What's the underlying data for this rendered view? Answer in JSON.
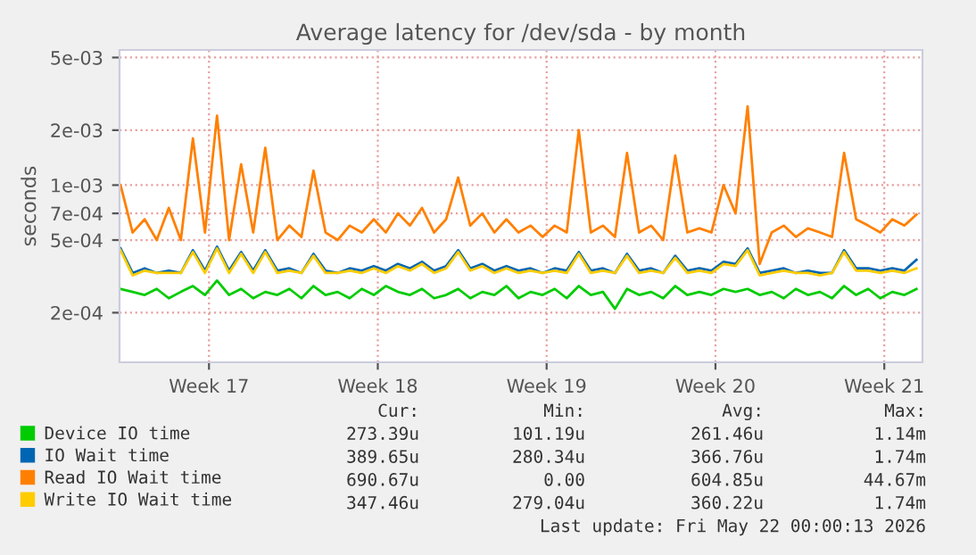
{
  "chart_data": {
    "type": "line",
    "title": "Average latency for /dev/sda - by month",
    "ylabel": "seconds",
    "x": [
      "2026-04-19T00:00",
      "2026-04-19T12:00",
      "2026-04-20T00:00",
      "2026-04-20T12:00",
      "2026-04-21T00:00",
      "2026-04-21T12:00",
      "2026-04-22T00:00",
      "2026-04-22T12:00",
      "2026-04-23T00:00",
      "2026-04-23T12:00",
      "2026-04-24T00:00",
      "2026-04-24T12:00",
      "2026-04-25T00:00",
      "2026-04-25T12:00",
      "2026-04-26T00:00",
      "2026-04-26T12:00",
      "2026-04-27T00:00",
      "2026-04-27T12:00",
      "2026-04-28T00:00",
      "2026-04-28T12:00",
      "2026-04-29T00:00",
      "2026-04-29T12:00",
      "2026-04-30T00:00",
      "2026-04-30T12:00",
      "2026-05-01T00:00",
      "2026-05-01T12:00",
      "2026-05-02T00:00",
      "2026-05-02T12:00",
      "2026-05-03T00:00",
      "2026-05-03T12:00",
      "2026-05-04T00:00",
      "2026-05-04T12:00",
      "2026-05-05T00:00",
      "2026-05-05T12:00",
      "2026-05-06T00:00",
      "2026-05-06T12:00",
      "2026-05-07T00:00",
      "2026-05-07T12:00",
      "2026-05-08T00:00",
      "2026-05-08T12:00",
      "2026-05-09T00:00",
      "2026-05-09T12:00",
      "2026-05-10T00:00",
      "2026-05-10T12:00",
      "2026-05-11T00:00",
      "2026-05-11T12:00",
      "2026-05-12T00:00",
      "2026-05-12T12:00",
      "2026-05-13T00:00",
      "2026-05-13T12:00",
      "2026-05-14T00:00",
      "2026-05-14T12:00",
      "2026-05-15T00:00",
      "2026-05-15T12:00",
      "2026-05-16T00:00",
      "2026-05-16T12:00",
      "2026-05-17T00:00",
      "2026-05-17T12:00",
      "2026-05-18T00:00",
      "2026-05-18T12:00",
      "2026-05-19T00:00",
      "2026-05-19T12:00",
      "2026-05-20T00:00",
      "2026-05-20T12:00",
      "2026-05-21T00:00",
      "2026-05-21T12:00",
      "2026-05-22T00:00"
    ],
    "series": [
      {
        "name": "Device IO time",
        "color": "#00cc00",
        "values": [
          0.00027,
          0.00026,
          0.00025,
          0.00027,
          0.00024,
          0.00026,
          0.00028,
          0.00025,
          0.0003,
          0.00025,
          0.00027,
          0.00024,
          0.00026,
          0.00025,
          0.00027,
          0.00024,
          0.00028,
          0.00025,
          0.00026,
          0.00024,
          0.00027,
          0.00025,
          0.00028,
          0.00026,
          0.00025,
          0.00027,
          0.00024,
          0.00025,
          0.00027,
          0.00024,
          0.00026,
          0.00025,
          0.00028,
          0.00024,
          0.00026,
          0.00025,
          0.00027,
          0.00024,
          0.00028,
          0.00025,
          0.00026,
          0.00021,
          0.00027,
          0.00025,
          0.00026,
          0.00024,
          0.00028,
          0.00025,
          0.00026,
          0.00025,
          0.00027,
          0.00026,
          0.00027,
          0.00025,
          0.00026,
          0.00024,
          0.00027,
          0.00025,
          0.00026,
          0.00024,
          0.00028,
          0.00025,
          0.00027,
          0.00024,
          0.00026,
          0.00025,
          0.00027
        ]
      },
      {
        "name": "IO Wait time",
        "color": "#0066b3",
        "values": [
          0.00045,
          0.00033,
          0.00035,
          0.00033,
          0.00034,
          0.00033,
          0.00044,
          0.00034,
          0.00046,
          0.00034,
          0.00043,
          0.00034,
          0.00044,
          0.00034,
          0.00035,
          0.00033,
          0.00042,
          0.00034,
          0.00033,
          0.00035,
          0.00034,
          0.00036,
          0.00034,
          0.00037,
          0.00035,
          0.00038,
          0.00034,
          0.00036,
          0.00044,
          0.00035,
          0.00037,
          0.00034,
          0.00036,
          0.00034,
          0.00035,
          0.00033,
          0.00035,
          0.00034,
          0.00043,
          0.00034,
          0.00035,
          0.00033,
          0.00042,
          0.00034,
          0.00035,
          0.00033,
          0.00041,
          0.00034,
          0.00035,
          0.00034,
          0.00038,
          0.00037,
          0.00045,
          0.00033,
          0.00034,
          0.00035,
          0.00033,
          0.00034,
          0.00033,
          0.00033,
          0.00044,
          0.00035,
          0.00035,
          0.00034,
          0.00035,
          0.00034,
          0.00039
        ]
      },
      {
        "name": "Read IO Wait time",
        "color": "#ff8000",
        "values": [
          0.001,
          0.00055,
          0.00065,
          0.0005,
          0.00075,
          0.0005,
          0.0018,
          0.00055,
          0.0024,
          0.0005,
          0.0013,
          0.00055,
          0.0016,
          0.0005,
          0.0006,
          0.00052,
          0.0012,
          0.00055,
          0.0005,
          0.0006,
          0.00055,
          0.00065,
          0.00055,
          0.0007,
          0.0006,
          0.00075,
          0.00055,
          0.00065,
          0.0011,
          0.0006,
          0.0007,
          0.00055,
          0.00065,
          0.00055,
          0.0006,
          0.00052,
          0.0006,
          0.00055,
          0.002,
          0.00055,
          0.0006,
          0.00052,
          0.0015,
          0.00055,
          0.0006,
          0.0005,
          0.00145,
          0.00055,
          0.00058,
          0.00055,
          0.001,
          0.0007,
          0.0027,
          0.00037,
          0.00055,
          0.0006,
          0.00052,
          0.00058,
          0.00055,
          0.00052,
          0.0015,
          0.00065,
          0.0006,
          0.00055,
          0.00065,
          0.0006,
          0.00069
        ]
      },
      {
        "name": "Write IO Wait time",
        "color": "#ffcc00",
        "values": [
          0.00044,
          0.00032,
          0.00034,
          0.00033,
          0.00033,
          0.00033,
          0.00043,
          0.00033,
          0.00045,
          0.00033,
          0.00042,
          0.00033,
          0.00043,
          0.00033,
          0.00034,
          0.00033,
          0.00041,
          0.00033,
          0.00033,
          0.00034,
          0.00033,
          0.00035,
          0.00033,
          0.00036,
          0.00034,
          0.00037,
          0.00033,
          0.00035,
          0.00043,
          0.00034,
          0.00036,
          0.00033,
          0.00035,
          0.00033,
          0.00034,
          0.00033,
          0.00034,
          0.00033,
          0.00042,
          0.00033,
          0.00034,
          0.00033,
          0.00041,
          0.00033,
          0.00034,
          0.00033,
          0.0004,
          0.00033,
          0.00034,
          0.00033,
          0.00037,
          0.00036,
          0.00044,
          0.00032,
          0.00033,
          0.00034,
          0.00033,
          0.00033,
          0.00032,
          0.00033,
          0.00043,
          0.00034,
          0.00034,
          0.00033,
          0.00034,
          0.00033,
          0.00035
        ]
      }
    ],
    "log": "y",
    "xlim": [
      "2026-04-18T23:00",
      "2026-05-22T06:00"
    ],
    "ylim": [
      0.000107,
      0.0055
    ],
    "xticks": [
      {
        "value": "2026-04-22T16:00",
        "label": "Week 17"
      },
      {
        "value": "2026-04-29T16:00",
        "label": "Week 18"
      },
      {
        "value": "2026-05-06T16:00",
        "label": "Week 19"
      },
      {
        "value": "2026-05-13T16:00",
        "label": "Week 20"
      },
      {
        "value": "2026-05-20T16:00",
        "label": "Week 21"
      }
    ],
    "yticks": [
      {
        "value": 0.0002,
        "label": "2e-04"
      },
      {
        "value": 0.0005,
        "label": "5e-04"
      },
      {
        "value": 0.0007,
        "label": "7e-04"
      },
      {
        "value": 0.001,
        "label": "1e-03"
      },
      {
        "value": 0.002,
        "label": "2e-03"
      },
      {
        "value": 0.005,
        "label": "5e-03"
      }
    ],
    "grid": true,
    "legend": "bottom",
    "annotations": [
      "Cur:",
      "Min:",
      "Avg:",
      "Max:",
      "273.39u",
      "101.19u",
      "261.46u",
      "1.14m",
      "389.65u",
      "280.34u",
      "366.76u",
      "1.74m",
      "690.67u",
      "0.00",
      "604.85u",
      "44.67m",
      "347.46u",
      "279.04u",
      "360.22u",
      "1.74m",
      "Last update: Fri May 22 00:00:13 2026"
    ]
  }
}
